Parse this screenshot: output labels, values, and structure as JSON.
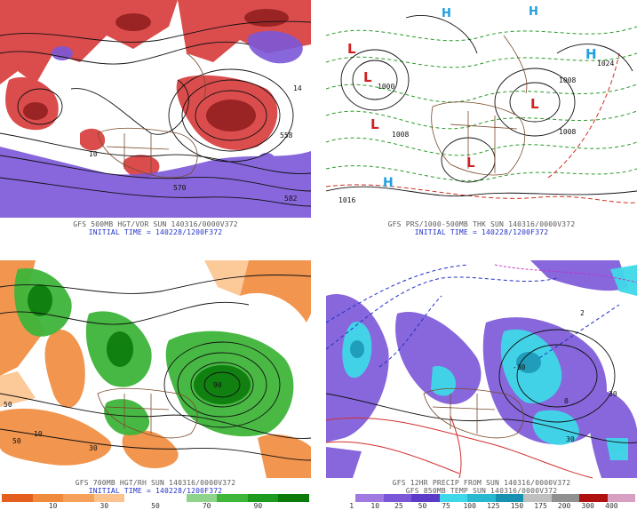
{
  "panels": [
    {
      "id": "tl",
      "caption1": "GFS 500MB HGT/VOR SUN 140316/0000V372",
      "caption2": "INITIAL TIME = 140228/1200F372",
      "contour_labels": [
        "558",
        "570",
        "582",
        "14",
        "10"
      ]
    },
    {
      "id": "tr",
      "caption1": "GFS PRS/1000-500MB THK SUN 140316/0000V372",
      "caption2": "INITIAL TIME = 140228/1200F372",
      "highs": [
        "H",
        "H",
        "H",
        "H"
      ],
      "lows": [
        "L",
        "L",
        "L",
        "L",
        "L"
      ],
      "contour_labels": [
        "1024",
        "1008",
        "1000",
        "1008",
        "1016",
        "1008"
      ]
    },
    {
      "id": "bl",
      "caption1": "GFS 700MB HGT/RH SUN 140316/0000V372",
      "caption2": "INITIAL TIME = 140228/1200F372",
      "contour_labels": [
        "50",
        "10",
        "30",
        "90",
        "50"
      ],
      "colorbar": {
        "colors": [
          "#e45f1e",
          "#f08a3c",
          "#f5a15a",
          "#fcc38e",
          "#ffffff",
          "#ffffff",
          "#8fd48a",
          "#3fb53a",
          "#1e9a1e",
          "#0b7a0b"
        ],
        "ticks": [
          "10",
          "30",
          "50",
          "70",
          "90"
        ]
      }
    },
    {
      "id": "br",
      "caption1": "GFS 12HR PRECIP FROM SUN 140316/0000V372",
      "caption2": "GFS 850MB TEMP SUN 140316/0000V372",
      "contour_labels": [
        "-30",
        "0",
        "30",
        "30",
        "2"
      ],
      "colorbar": {
        "colors": [
          "#ffffff",
          "#a07ae0",
          "#7b57d8",
          "#5a3cc8",
          "#3fd8e8",
          "#2ab8d0",
          "#1890b0",
          "#c0c0c0",
          "#909090",
          "#b01010",
          "#d8a0c0"
        ],
        "ticks": [
          "1",
          "10",
          "25",
          "50",
          "75",
          "100",
          "125",
          "150",
          "175",
          "200",
          "300",
          "400"
        ]
      }
    }
  ]
}
